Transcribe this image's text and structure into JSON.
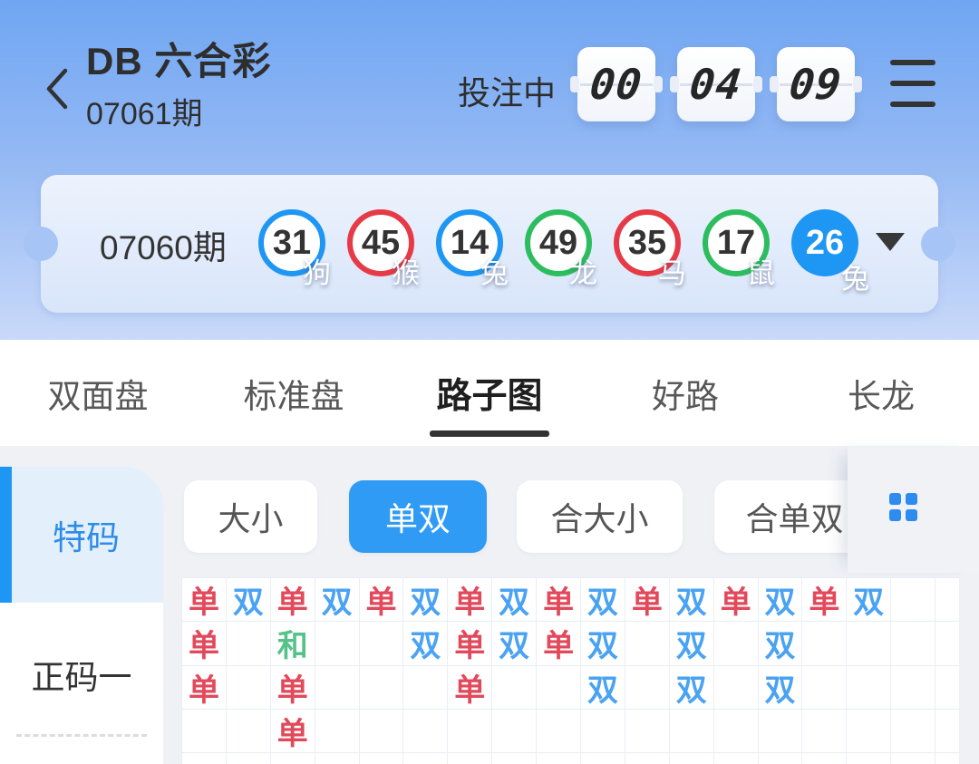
{
  "header": {
    "title": "DB 六合彩",
    "current_period": "07061期",
    "status_label": "投注中",
    "countdown": {
      "hours": "00",
      "minutes": "04",
      "seconds": "09"
    }
  },
  "result_card": {
    "period": "07060期",
    "balls": [
      {
        "number": "31",
        "zodiac": "狗",
        "color": "blue",
        "style": "ring"
      },
      {
        "number": "45",
        "zodiac": "猴",
        "color": "red",
        "style": "ring"
      },
      {
        "number": "14",
        "zodiac": "兔",
        "color": "blue",
        "style": "ring"
      },
      {
        "number": "49",
        "zodiac": "龙",
        "color": "green",
        "style": "ring"
      },
      {
        "number": "35",
        "zodiac": "马",
        "color": "red",
        "style": "ring"
      },
      {
        "number": "17",
        "zodiac": "鼠",
        "color": "green",
        "style": "ring"
      },
      {
        "number": "26",
        "zodiac": "兔",
        "color": "blue",
        "style": "solid"
      }
    ]
  },
  "tabs": [
    {
      "label": "双面盘",
      "active": false
    },
    {
      "label": "标准盘",
      "active": false
    },
    {
      "label": "路子图",
      "active": true
    },
    {
      "label": "好路",
      "active": false
    },
    {
      "label": "长龙",
      "active": false
    }
  ],
  "sidebar": {
    "items": [
      {
        "label": "特码",
        "active": true
      },
      {
        "label": "正码一",
        "active": false
      }
    ]
  },
  "filters": {
    "buttons": [
      {
        "label": "大小",
        "active": false
      },
      {
        "label": "单双",
        "active": true
      },
      {
        "label": "合大小",
        "active": false
      },
      {
        "label": "合单双",
        "active": false
      }
    ]
  },
  "roadmap": {
    "columns": 18,
    "rows": 5,
    "legend": {
      "单": "odd (red)",
      "双": "even (blue)",
      "和": "tie (green)"
    },
    "cells": [
      [
        "单",
        "双",
        "单",
        "双",
        "单",
        "双",
        "单",
        "双",
        "单",
        "双",
        "单",
        "双",
        "单",
        "双",
        "单",
        "双",
        "",
        ""
      ],
      [
        "单",
        "",
        "和",
        "",
        "",
        "双",
        "单",
        "双",
        "单",
        "双",
        "",
        "双",
        "",
        "双",
        "",
        "",
        "",
        ""
      ],
      [
        "单",
        "",
        "单",
        "",
        "",
        "",
        "单",
        "",
        "",
        "双",
        "",
        "双",
        "",
        "双",
        "",
        "",
        "",
        ""
      ],
      [
        "",
        "",
        "单",
        "",
        "",
        "",
        "",
        "",
        "",
        "",
        "",
        "",
        "",
        "",
        "",
        "",
        "",
        ""
      ],
      [
        "",
        "",
        "",
        "",
        "",
        "",
        "",
        "",
        "",
        "",
        "",
        "",
        "",
        "",
        "",
        "",
        "",
        ""
      ]
    ]
  },
  "colors": {
    "accent_blue": "#1E96F3",
    "ring_red": "#E63A46",
    "ring_green": "#2CBD5F",
    "odd_red": "#E2495B",
    "even_blue": "#4AA3F2",
    "tie_green": "#56C289",
    "active_filter": "#2F9BF4"
  }
}
